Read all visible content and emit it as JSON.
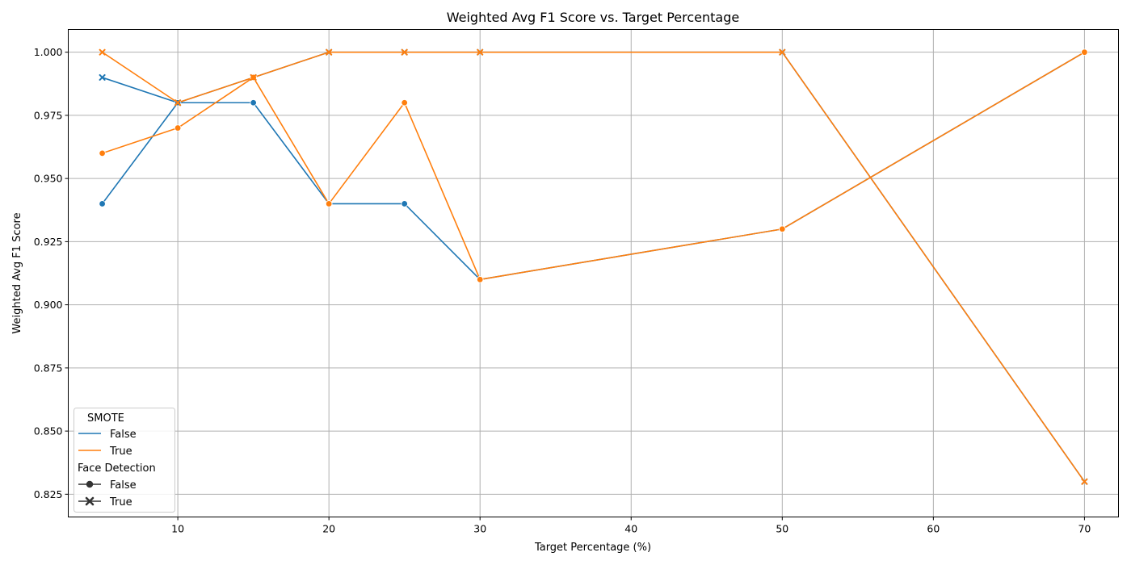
{
  "chart_data": {
    "type": "line",
    "title": "Weighted Avg F1 Score vs. Target Percentage",
    "xlabel": "Target Percentage (%)",
    "ylabel": "Weighted Avg F1 Score",
    "xlim": [
      2.75,
      72.25
    ],
    "ylim": [
      0.816,
      1.009
    ],
    "xticks": [
      10,
      20,
      30,
      40,
      50,
      60,
      70
    ],
    "yticks": [
      0.825,
      0.85,
      0.875,
      0.9,
      0.925,
      0.95,
      0.975,
      1.0
    ],
    "grid": true,
    "legend_position": "lower-left",
    "legend": {
      "hue_title": "SMOTE",
      "hue_entries": [
        {
          "label": "False",
          "color": "#1f77b4"
        },
        {
          "label": "True",
          "color": "#ff7f0e"
        }
      ],
      "style_title": "Face Detection",
      "style_entries": [
        {
          "label": "False",
          "marker": "circle"
        },
        {
          "label": "True",
          "marker": "x"
        }
      ]
    },
    "series": [
      {
        "smote": "False",
        "face_detection": "False",
        "color": "#1f77b4",
        "marker": "circle",
        "x": [
          5,
          10,
          15,
          20,
          25,
          30,
          50,
          70
        ],
        "y": [
          0.94,
          0.98,
          0.98,
          0.94,
          0.94,
          0.91,
          0.93,
          1.0
        ]
      },
      {
        "smote": "False",
        "face_detection": "True",
        "color": "#1f77b4",
        "marker": "x",
        "x": [
          5,
          10,
          15,
          20,
          25,
          30,
          50,
          70
        ],
        "y": [
          0.99,
          0.98,
          0.99,
          1.0,
          1.0,
          1.0,
          1.0,
          0.83
        ]
      },
      {
        "smote": "True",
        "face_detection": "False",
        "color": "#ff7f0e",
        "marker": "circle",
        "x": [
          5,
          10,
          15,
          20,
          25,
          30,
          50,
          70
        ],
        "y": [
          0.96,
          0.97,
          0.99,
          0.94,
          0.98,
          0.91,
          0.93,
          1.0
        ]
      },
      {
        "smote": "True",
        "face_detection": "True",
        "color": "#ff7f0e",
        "marker": "x",
        "x": [
          5,
          10,
          15,
          20,
          25,
          30,
          50,
          70
        ],
        "y": [
          1.0,
          0.98,
          0.99,
          1.0,
          1.0,
          1.0,
          1.0,
          0.83
        ]
      }
    ]
  }
}
